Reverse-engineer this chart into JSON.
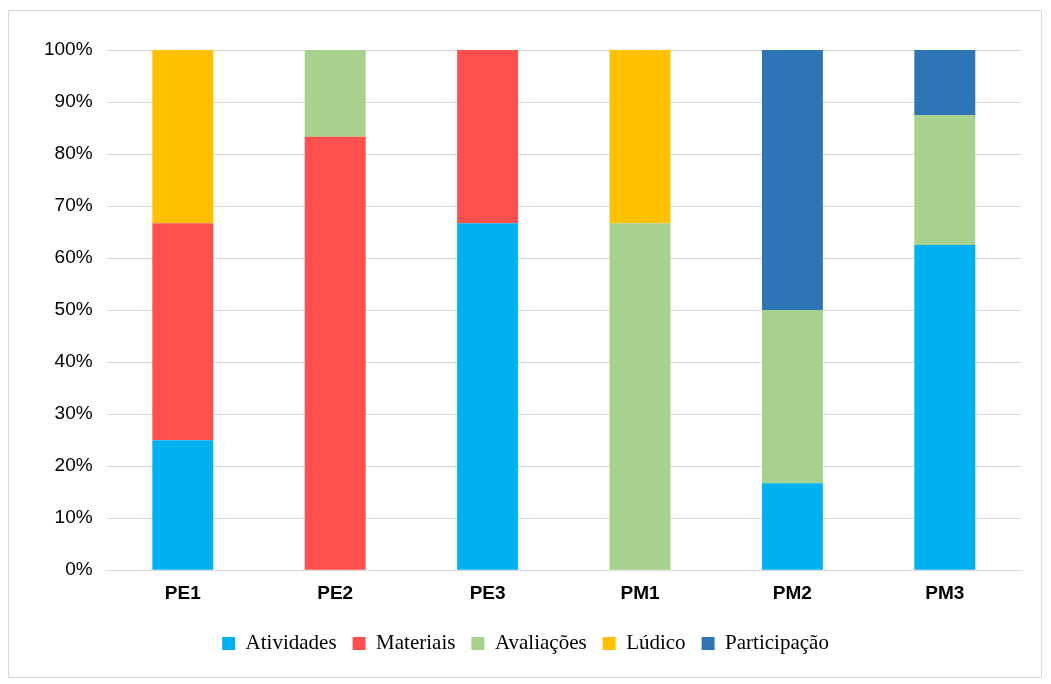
{
  "chart_data": {
    "type": "bar",
    "stacked": true,
    "categories": [
      "PE1",
      "PE2",
      "PE3",
      "PM1",
      "PM2",
      "PM3"
    ],
    "series": [
      {
        "name": "Atividades",
        "color": "#00b0f0",
        "values": [
          25,
          0,
          66.7,
          0,
          16.7,
          62.5
        ]
      },
      {
        "name": "Materiais",
        "color": "#ff5050",
        "values": [
          41.7,
          83.3,
          33.3,
          0,
          0,
          0
        ]
      },
      {
        "name": "Avaliações",
        "color": "#a9d18e",
        "values": [
          0,
          16.7,
          0,
          66.7,
          33.3,
          25
        ]
      },
      {
        "name": "Lúdico",
        "color": "#ffc000",
        "values": [
          33.3,
          0,
          0,
          33.3,
          0,
          0
        ]
      },
      {
        "name": "Participação",
        "color": "#2e75b6",
        "values": [
          0,
          0,
          0,
          0,
          50,
          12.5
        ]
      }
    ],
    "ylim": [
      0,
      100
    ],
    "yticks": [
      {
        "value": 0,
        "label": "0%"
      },
      {
        "value": 10,
        "label": "10%"
      },
      {
        "value": 20,
        "label": "20%"
      },
      {
        "value": 30,
        "label": "30%"
      },
      {
        "value": 40,
        "label": "40%"
      },
      {
        "value": 50,
        "label": "50%"
      },
      {
        "value": 60,
        "label": "60%"
      },
      {
        "value": 70,
        "label": "70%"
      },
      {
        "value": 80,
        "label": "80%"
      },
      {
        "value": 90,
        "label": "90%"
      },
      {
        "value": 100,
        "label": "100%"
      }
    ],
    "grid": "y",
    "legend": "bottom"
  }
}
